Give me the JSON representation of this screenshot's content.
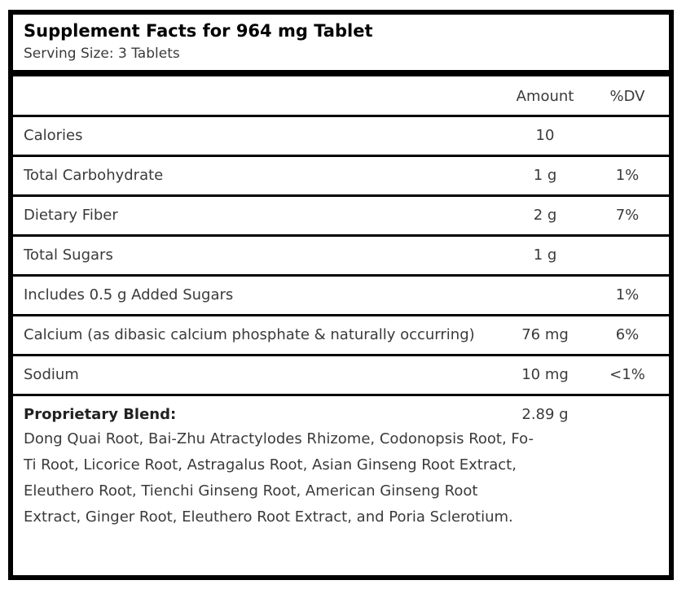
{
  "header": {
    "title": "Supplement Facts for 964 mg Tablet",
    "serving_size": "Serving Size: 3 Tablets"
  },
  "table": {
    "columns": {
      "amount": "Amount",
      "dv": "%DV"
    },
    "rows": [
      {
        "name": "Calories",
        "amount": "10",
        "dv": ""
      },
      {
        "name": "Total Carbohydrate",
        "amount": "1 g",
        "dv": "1%"
      },
      {
        "name": "Dietary Fiber",
        "amount": "2 g",
        "dv": "7%"
      },
      {
        "name": "Total Sugars",
        "amount": "1 g",
        "dv": ""
      },
      {
        "name": "Includes 0.5 g Added Sugars",
        "amount": "",
        "dv": "1%"
      },
      {
        "name": "Calcium (as dibasic calcium phosphate & naturally occurring)",
        "amount": "76 mg",
        "dv": "6%"
      },
      {
        "name": "Sodium",
        "amount": "10 mg",
        "dv": "<1%"
      }
    ],
    "blend": {
      "label": "Proprietary Blend:",
      "amount": "2.89 g",
      "ingredients": "Dong Quai Root, Bai-Zhu Atractylodes Rhizome, Codonopsis Root, Fo-Ti Root, Licorice Root, Astragalus Root, Asian Ginseng Root Extract, Eleuthero Root, Tienchi Ginseng Root, American Ginseng Root Extract, Ginger Root, Eleuthero Root Extract, and Poria Sclerotium."
    }
  },
  "colors": {
    "border": "#000000",
    "title_text": "#000000",
    "body_text": "#3a3a3a",
    "background": "#ffffff"
  }
}
